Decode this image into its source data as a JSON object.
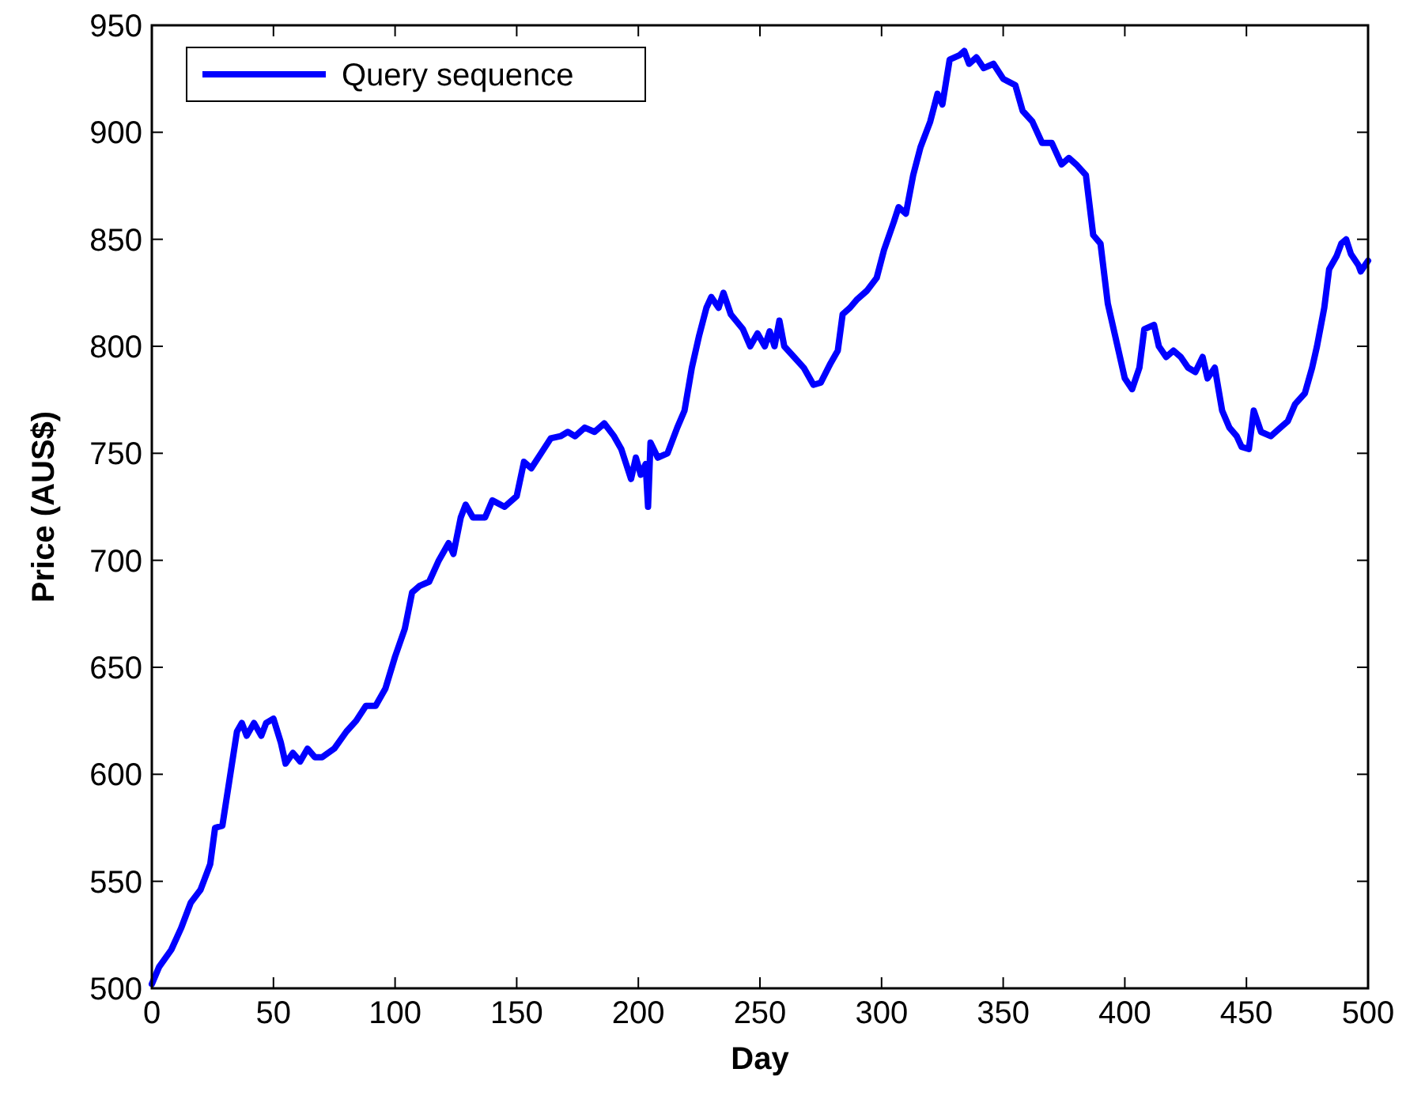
{
  "chart_data": {
    "type": "line",
    "xlabel": "Day",
    "ylabel": "Price (AUS$)",
    "xlim": [
      0,
      500
    ],
    "xticks": [
      0,
      50,
      100,
      150,
      200,
      250,
      300,
      350,
      400,
      450,
      500
    ],
    "ylim": [
      500,
      950
    ],
    "yticks": [
      500,
      550,
      600,
      650,
      700,
      750,
      800,
      850,
      900,
      950
    ],
    "legend": "top left",
    "grid": false,
    "series": [
      {
        "name": "Query sequence",
        "color": "#0000ff",
        "x": [
          0,
          3,
          8,
          12,
          16,
          20,
          24,
          26,
          29,
          32,
          35,
          37,
          39,
          42,
          45,
          47,
          50,
          53,
          55,
          58,
          61,
          64,
          67,
          70,
          75,
          80,
          84,
          88,
          92,
          96,
          100,
          104,
          107,
          110,
          114,
          118,
          122,
          124,
          127,
          129,
          132,
          137,
          140,
          145,
          150,
          153,
          156,
          160,
          164,
          168,
          171,
          174,
          178,
          182,
          186,
          190,
          193,
          195,
          197,
          199,
          201,
          203,
          204,
          205,
          208,
          212,
          216,
          219,
          222,
          225,
          228,
          230,
          233,
          235,
          238,
          243,
          246,
          249,
          252,
          254,
          256,
          258,
          260,
          264,
          268,
          272,
          275,
          279,
          282,
          284,
          287,
          290,
          294,
          298,
          301,
          305,
          307,
          310,
          313,
          316,
          320,
          323,
          325,
          328,
          332,
          334,
          336,
          339,
          342,
          346,
          350,
          355,
          358,
          362,
          366,
          370,
          374,
          377,
          380,
          384,
          387,
          390,
          393,
          396,
          400,
          403,
          406,
          408,
          412,
          414,
          417,
          420,
          423,
          426,
          429,
          432,
          434,
          437,
          440,
          443,
          446,
          448,
          451,
          453,
          456,
          460,
          464,
          467,
          470,
          474,
          477,
          479,
          482,
          484,
          487,
          489,
          491,
          493,
          496,
          497,
          500
        ],
        "values": [
          502,
          510,
          518,
          528,
          540,
          546,
          558,
          575,
          576,
          598,
          620,
          624,
          618,
          624,
          618,
          624,
          626,
          615,
          605,
          610,
          606,
          612,
          608,
          608,
          612,
          620,
          625,
          632,
          632,
          640,
          655,
          668,
          685,
          688,
          690,
          700,
          708,
          703,
          720,
          726,
          720,
          720,
          728,
          725,
          730,
          746,
          743,
          750,
          757,
          758,
          760,
          758,
          762,
          760,
          764,
          758,
          752,
          745,
          738,
          748,
          740,
          745,
          725,
          755,
          748,
          750,
          762,
          770,
          790,
          805,
          818,
          823,
          818,
          825,
          815,
          808,
          800,
          806,
          800,
          807,
          800,
          812,
          800,
          795,
          790,
          782,
          783,
          792,
          798,
          815,
          818,
          822,
          826,
          832,
          845,
          858,
          865,
          862,
          880,
          893,
          905,
          918,
          913,
          934,
          936,
          938,
          932,
          935,
          930,
          932,
          925,
          922,
          910,
          905,
          895,
          895,
          885,
          888,
          885,
          880,
          852,
          848,
          820,
          805,
          785,
          780,
          790,
          808,
          810,
          800,
          795,
          798,
          795,
          790,
          788,
          795,
          785,
          790,
          770,
          762,
          758,
          753,
          752,
          770,
          760,
          758,
          762,
          765,
          773,
          778,
          790,
          800,
          818,
          836,
          842,
          848,
          850,
          843,
          838,
          835,
          840
        ]
      }
    ]
  }
}
